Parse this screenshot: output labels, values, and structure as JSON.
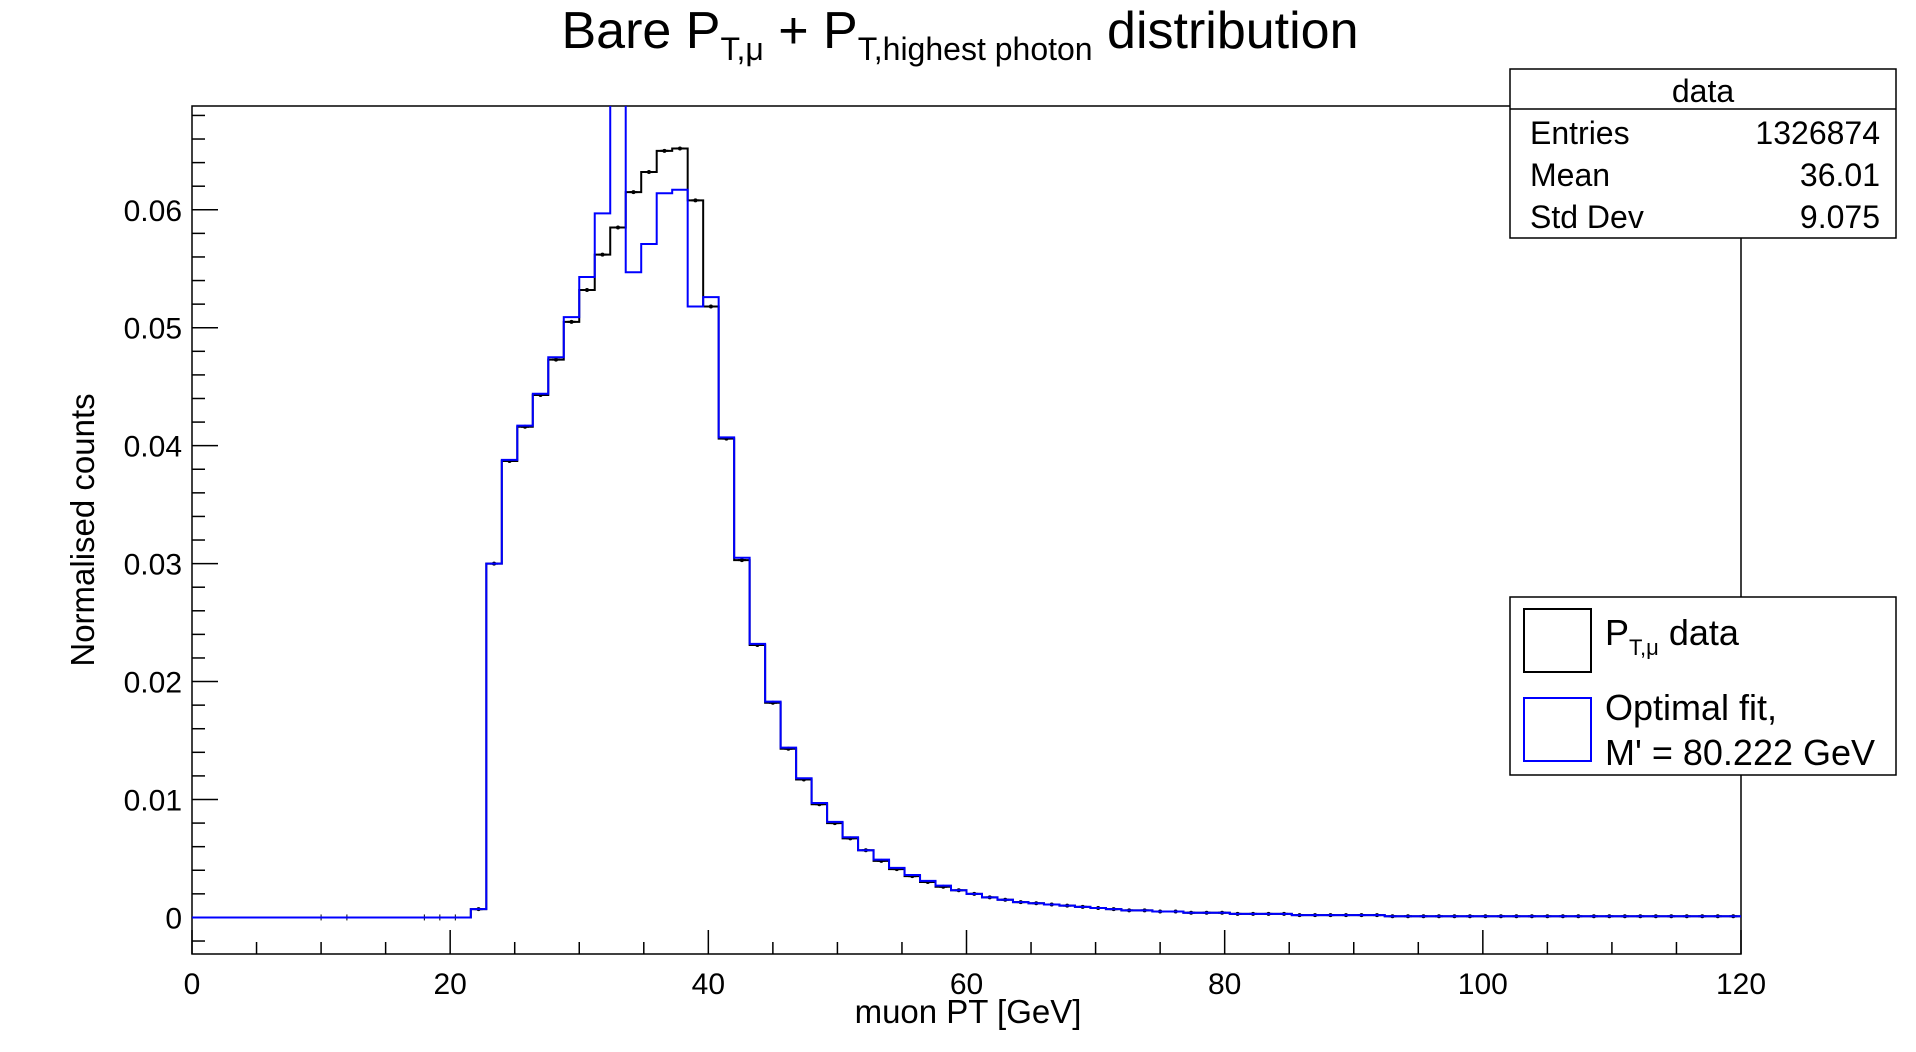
{
  "chart_data": {
    "type": "line",
    "title": {
      "main_before": "Bare P",
      "sub1": "T,μ",
      "plus": " + P",
      "sub2": "T,highest photon",
      "main_after": " distribution"
    },
    "xlabel": "muon PT [GeV]",
    "ylabel": "Normalised counts",
    "xlim": [
      0,
      120
    ],
    "ylim": [
      -0.0031,
      0.0688
    ],
    "x_ticks": [
      0,
      20,
      40,
      60,
      80,
      100,
      120
    ],
    "y_ticks": [
      0,
      0.01,
      0.02,
      0.03,
      0.04,
      0.05,
      0.06
    ],
    "y_tick_labels": [
      "0",
      "0.01",
      "0.02",
      "0.03",
      "0.04",
      "0.05",
      "0.06"
    ],
    "bin_width": 1.2,
    "x_start": 21.6,
    "series": [
      {
        "name": "data",
        "color": "#000000",
        "values": [
          0.0007,
          0.03,
          0.0387,
          0.0416,
          0.0443,
          0.0473,
          0.0505,
          0.0532,
          0.0562,
          0.0585,
          0.0615,
          0.0632,
          0.065,
          0.0652,
          0.0608,
          0.0518,
          0.0406,
          0.0303,
          0.0231,
          0.0182,
          0.0143,
          0.0117,
          0.0096,
          0.008,
          0.0067,
          0.0057,
          0.0048,
          0.0041,
          0.0035,
          0.003,
          0.0026,
          0.0023,
          0.002,
          0.0017,
          0.0015,
          0.0013,
          0.0012,
          0.0011,
          0.001,
          0.0009,
          0.0008,
          0.0007,
          0.0006,
          0.0006,
          0.0005,
          0.0005,
          0.0004,
          0.0004,
          0.0004,
          0.0003,
          0.0003,
          0.0003,
          0.0003,
          0.0002,
          0.0002,
          0.0002,
          0.0002,
          0.0002,
          0.0002,
          0.0001,
          0.0001,
          0.0001,
          0.0001,
          0.0001,
          0.0001,
          0.0001,
          0.0001,
          0.0001,
          0.0001,
          0.0001,
          0.0001,
          0.0001,
          0.0001,
          0.0001,
          0.0001,
          0.0001,
          0.0001,
          0.0001,
          0.0001,
          0.0001,
          0.0001,
          0.0001
        ]
      },
      {
        "name": "fit",
        "color": "#0000ff",
        "values": [
          0.0007,
          0.03,
          0.0388,
          0.0417,
          0.0444,
          0.0475,
          0.0509,
          0.0543,
          0.0597,
          0.074,
          0.0547,
          0.0571,
          0.0614,
          0.0617,
          0.0518,
          0.0526,
          0.0407,
          0.0305,
          0.0232,
          0.0183,
          0.0144,
          0.0118,
          0.0097,
          0.0081,
          0.0068,
          0.0057,
          0.0049,
          0.0042,
          0.0036,
          0.0031,
          0.0027,
          0.0023,
          0.002,
          0.0017,
          0.0015,
          0.0013,
          0.0012,
          0.0011,
          0.001,
          0.0009,
          0.0008,
          0.0007,
          0.0006,
          0.0006,
          0.0005,
          0.0005,
          0.0004,
          0.0004,
          0.0004,
          0.0003,
          0.0003,
          0.0003,
          0.0003,
          0.0002,
          0.0002,
          0.0002,
          0.0002,
          0.0002,
          0.0002,
          0.0001,
          0.0001,
          0.0001,
          0.0001,
          0.0001,
          0.0001,
          0.0001,
          0.0001,
          0.0001,
          0.0001,
          0.0001,
          0.0001,
          0.0001,
          0.0001,
          0.0001,
          0.0001,
          0.0001,
          0.0001,
          0.0001,
          0.0001,
          0.0001,
          0.0001,
          0.0001
        ]
      }
    ],
    "stats_box": {
      "title": "data",
      "rows": [
        {
          "label": "Entries",
          "value": "1326874"
        },
        {
          "label": "Mean",
          "value": "36.01"
        },
        {
          "label": "Std Dev",
          "value": "9.075"
        }
      ]
    },
    "legend": {
      "position": "right",
      "entries": [
        {
          "text_main": "P",
          "text_sub": "T,μ",
          "text_after": " data",
          "color": "#000000"
        },
        {
          "line1": "Optimal fit,",
          "line2": "M' = 80.222 GeV",
          "color": "#0000ff"
        }
      ]
    },
    "grid": false
  }
}
